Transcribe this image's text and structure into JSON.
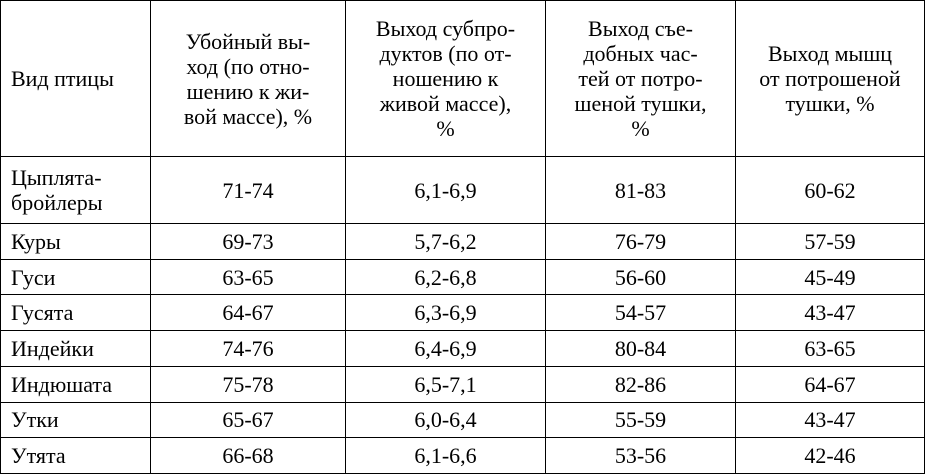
{
  "table": {
    "header": [
      "Вид птицы",
      "Убойный вы-\nход (по отно-\nшению к жи-\nвой массе), %",
      "Выход субпро-\nдуктов (по от-\nношению к\nживой массе),\n%",
      "Выход съе-\nдобных час-\nтей от потро-\nшеной тушки,\n%",
      "Выход мышц\nот потрошеной\nтушки, %"
    ],
    "rows": [
      [
        "Цыплята-\nбройлеры",
        "71-74",
        "6,1-6,9",
        "81-83",
        "60-62"
      ],
      [
        "Куры",
        "69-73",
        "5,7-6,2",
        "76-79",
        "57-59"
      ],
      [
        "Гуси",
        "63-65",
        "6,2-6,8",
        "56-60",
        "45-49"
      ],
      [
        "Гусята",
        "64-67",
        "6,3-6,9",
        "54-57",
        "43-47"
      ],
      [
        "Индейки",
        "74-76",
        "6,4-6,9",
        "80-84",
        "63-65"
      ],
      [
        "Индюшата",
        "75-78",
        "6,5-7,1",
        "82-86",
        "64-67"
      ],
      [
        "Утки",
        "65-67",
        "6,0-6,4",
        "55-59",
        "43-47"
      ],
      [
        "Утята",
        "66-68",
        "6,1-6,6",
        "53-56",
        "42-46"
      ]
    ]
  }
}
